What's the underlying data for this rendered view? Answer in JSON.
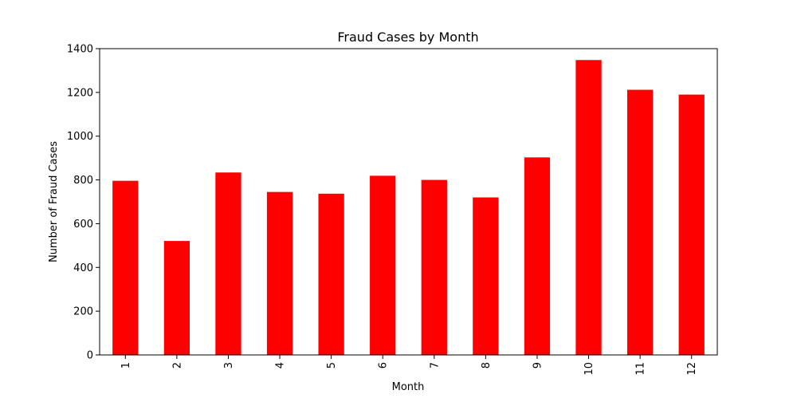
{
  "chart_data": {
    "type": "bar",
    "title": "Fraud Cases by Month",
    "xlabel": "Month",
    "ylabel": "Number of Fraud Cases",
    "categories": [
      "1",
      "2",
      "3",
      "4",
      "5",
      "6",
      "7",
      "8",
      "9",
      "10",
      "11",
      "12"
    ],
    "values": [
      796,
      521,
      834,
      745,
      737,
      819,
      800,
      720,
      903,
      1348,
      1212,
      1190
    ],
    "ylim": [
      0,
      1400
    ],
    "yticks": [
      "0",
      "200",
      "400",
      "600",
      "800",
      "1000",
      "1200",
      "1400"
    ],
    "bar_color": "#ff0000",
    "grid": false,
    "legend": "none",
    "xtick_rotation": "vertical"
  }
}
